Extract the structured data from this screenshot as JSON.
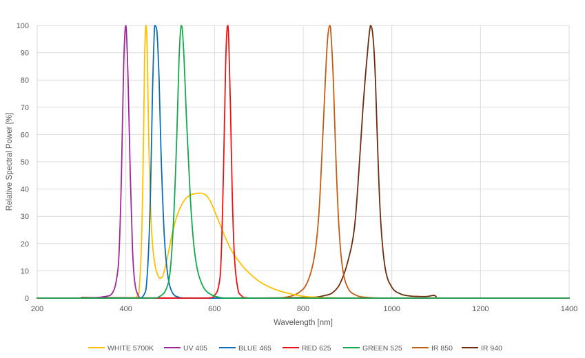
{
  "chart_data": {
    "type": "line",
    "title": "",
    "xlabel": "Wavelength [nm]",
    "ylabel": "Relative Spectral Power [%]",
    "xlim": [
      200,
      1400
    ],
    "ylim": [
      0,
      100
    ],
    "xticks": [
      200,
      400,
      600,
      800,
      1000,
      1200,
      1400
    ],
    "yticks": [
      0,
      10,
      20,
      30,
      40,
      50,
      60,
      70,
      80,
      90,
      100
    ],
    "grid": true,
    "legend_position": "bottom",
    "series": [
      {
        "name": "WHITE 5700K",
        "color": "#FFC000",
        "x": [
          200,
          420,
          432,
          438,
          442,
          445,
          448,
          452,
          458,
          465,
          472,
          478,
          485,
          495,
          505,
          515,
          525,
          535,
          545,
          555,
          565,
          575,
          585,
          595,
          605,
          615,
          625,
          640,
          655,
          670,
          690,
          710,
          740,
          770,
          800,
          830,
          860,
          900,
          1000,
          1100,
          1400
        ],
        "y": [
          0,
          0,
          8,
          40,
          85,
          100,
          92,
          55,
          25,
          13,
          8.5,
          7.3,
          9,
          16,
          24,
          30,
          34,
          36.5,
          37.8,
          38.3,
          38.5,
          38.3,
          37,
          34,
          30,
          26,
          22,
          17,
          13.5,
          10.5,
          7.5,
          5.2,
          3,
          1.6,
          0.7,
          0.3,
          0.1,
          0,
          0,
          0,
          0
        ]
      },
      {
        "name": "UV 405",
        "color": "#A0269C",
        "x": [
          200,
          300,
          350,
          370,
          380,
          385,
          390,
          395,
          400,
          405,
          410,
          415,
          420,
          428,
          440,
          1400
        ],
        "y": [
          0,
          0,
          0.5,
          2,
          8,
          18,
          45,
          85,
          100,
          80,
          45,
          18,
          6,
          1,
          0,
          0
        ]
      },
      {
        "name": "BLUE 465",
        "color": "#0D6CB6",
        "x": [
          200,
          420,
          440,
          448,
          455,
          460,
          465,
          470,
          475,
          480,
          487,
          495,
          505,
          520,
          540,
          1400
        ],
        "y": [
          0,
          0,
          1,
          8,
          35,
          75,
          100,
          98,
          80,
          50,
          22,
          8,
          2,
          0.3,
          0,
          0
        ]
      },
      {
        "name": "RED 625",
        "color": "#EE1111",
        "x": [
          200,
          580,
          600,
          610,
          615,
          620,
          625,
          628,
          630,
          632,
          636,
          640,
          645,
          652,
          660,
          680,
          1400
        ],
        "y": [
          0,
          0,
          1,
          5,
          15,
          45,
          85,
          98,
          100,
          95,
          70,
          38,
          15,
          4,
          1,
          0,
          0
        ]
      },
      {
        "name": "GREEN 525",
        "color": "#13A84E",
        "x": [
          200,
          460,
          475,
          490,
          500,
          508,
          515,
          520,
          525,
          530,
          537,
          545,
          553,
          562,
          575,
          590,
          610,
          640,
          1400
        ],
        "y": [
          0,
          0,
          0.5,
          3,
          10,
          30,
          60,
          88,
          100,
          92,
          65,
          38,
          20,
          10,
          4,
          1.5,
          0.3,
          0,
          0
        ]
      },
      {
        "name": "IR 850",
        "color": "#C55A11",
        "x": [
          200,
          720,
          760,
          790,
          810,
          825,
          835,
          843,
          850,
          855,
          860,
          863,
          868,
          873,
          880,
          888,
          900,
          920,
          950,
          1000,
          1400
        ],
        "y": [
          0,
          0,
          0.3,
          2,
          6,
          15,
          30,
          55,
          80,
          95,
          100,
          96,
          80,
          55,
          28,
          12,
          4,
          1,
          0.2,
          0,
          0
        ]
      },
      {
        "name": "IR 940",
        "color": "#6B2C0C",
        "x": [
          300,
          600,
          800,
          850,
          870,
          885,
          900,
          915,
          925,
          935,
          945,
          952,
          958,
          963,
          968,
          975,
          985,
          1000,
          1020,
          1040,
          1060,
          1080,
          1095,
          1100
        ],
        "y": [
          0.2,
          0,
          0.2,
          1,
          2.5,
          6,
          13,
          25,
          45,
          70,
          90,
          100,
          95,
          80,
          55,
          28,
          11,
          4,
          1.5,
          0.8,
          0.6,
          0.6,
          1,
          0.5
        ]
      }
    ]
  }
}
